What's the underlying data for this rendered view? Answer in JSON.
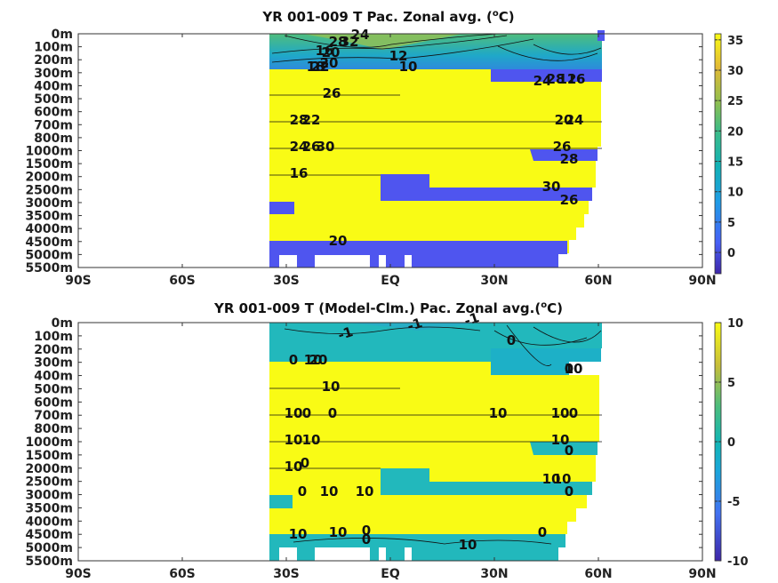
{
  "chart_data": [
    {
      "type": "heatmap",
      "title": "YR 001-009 T Pac. Zonal avg. (",
      "title_sup": "o",
      "title_end": "C)",
      "x_tick_labels": [
        "90S",
        "60S",
        "30S",
        "EQ",
        "30N",
        "60N",
        "90N"
      ],
      "x_values": [
        -90,
        -60,
        -30,
        0,
        30,
        60,
        90
      ],
      "y_tick_labels": [
        "0m",
        "100m",
        "200m",
        "300m",
        "400m",
        "500m",
        "600m",
        "700m",
        "800m",
        "1000m",
        "1500m",
        "2000m",
        "2500m",
        "3000m",
        "3500m",
        "4000m",
        "4500m",
        "5000m",
        "5500m"
      ],
      "colorbar": {
        "ticks": [
          "35",
          "30",
          "25",
          "20",
          "15",
          "10",
          "5",
          "0"
        ],
        "values": [
          35,
          30,
          25,
          20,
          15,
          10,
          5,
          0
        ],
        "range": [
          -3.5,
          36
        ]
      },
      "contour_labels": [
        "24",
        "28",
        "32",
        "16",
        "20",
        "12",
        "10",
        "18",
        "20",
        "22",
        "26",
        "28",
        "22",
        "24",
        "26",
        "30",
        "16",
        "20",
        "24",
        "28",
        "12",
        "16",
        "20",
        "24",
        "26",
        "28",
        "30",
        "26"
      ],
      "grid": false
    },
    {
      "type": "heatmap",
      "title": "YR 001-009 T (Model-Clm.) Pac. Zonal avg.(",
      "title_sup": "o",
      "title_end": "C)",
      "x_tick_labels": [
        "90S",
        "60S",
        "30S",
        "EQ",
        "30N",
        "60N",
        "90N"
      ],
      "x_values": [
        -90,
        -60,
        -30,
        0,
        30,
        60,
        90
      ],
      "y_tick_labels": [
        "0m",
        "100m",
        "200m",
        "300m",
        "400m",
        "500m",
        "600m",
        "700m",
        "800m",
        "1000m",
        "1500m",
        "2000m",
        "2500m",
        "3000m",
        "3500m",
        "4000m",
        "4500m",
        "5000m",
        "5500m"
      ],
      "colorbar": {
        "ticks": [
          "10",
          "5",
          "0",
          "-5",
          "-10"
        ],
        "values": [
          10,
          5,
          0,
          -5,
          -10
        ],
        "range": [
          -10,
          10
        ]
      },
      "contour_labels": [
        "-1",
        "-1",
        "-1",
        "0",
        "0",
        "10",
        "20",
        "10",
        "10",
        "0",
        "0",
        "10",
        "10",
        "0",
        "10",
        "10",
        "10",
        "0",
        "10",
        "0",
        "10",
        "10",
        "0",
        "10",
        "10",
        "0",
        "10",
        "10",
        "0",
        "0",
        "10",
        "0",
        "0",
        "10"
      ],
      "grid": false
    }
  ]
}
